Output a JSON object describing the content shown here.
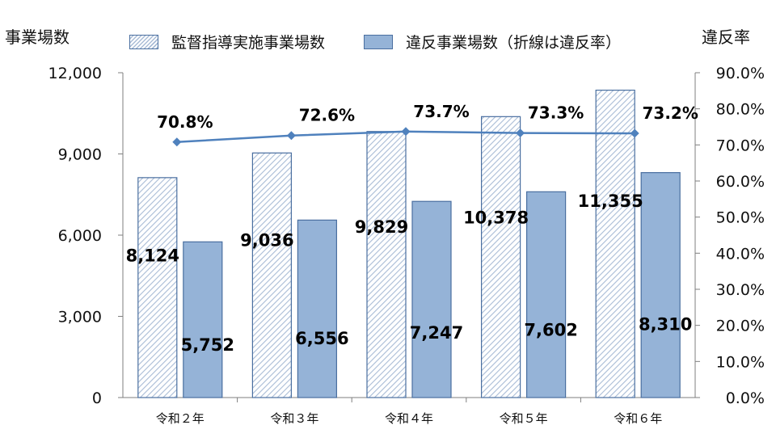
{
  "chart_data": {
    "type": "bar",
    "left_axis_title": "事業場数",
    "right_axis_title": "違反率",
    "categories": [
      "令和２年",
      "令和３年",
      "令和４年",
      "令和５年",
      "令和６年"
    ],
    "series": [
      {
        "name": "監督指導実施事業場数",
        "type": "bar",
        "values": [
          8124,
          9036,
          9829,
          10378,
          11355
        ],
        "labels": [
          "8,124",
          "9,036",
          "9,829",
          "10,378",
          "11,355"
        ]
      },
      {
        "name": "違反事業場数（折線は違反率）",
        "type": "bar",
        "values": [
          5752,
          6556,
          7247,
          7602,
          8310
        ],
        "labels": [
          "5,752",
          "6,556",
          "7,247",
          "7,602",
          "8,310"
        ]
      },
      {
        "name": "違反率",
        "type": "line",
        "axis": "right",
        "values": [
          70.8,
          72.6,
          73.7,
          73.3,
          73.2
        ],
        "labels": [
          "70.8%",
          "72.6%",
          "73.7%",
          "73.3%",
          "73.2%"
        ]
      }
    ],
    "left_axis": {
      "ylim": [
        0,
        12000
      ],
      "ticks": [
        0,
        3000,
        6000,
        9000,
        12000
      ],
      "tick_labels": [
        "0",
        "3,000",
        "6,000",
        "9,000",
        "12,000"
      ]
    },
    "right_axis": {
      "ylim": [
        0,
        90
      ],
      "ticks": [
        0,
        10,
        20,
        30,
        40,
        50,
        60,
        70,
        80,
        90
      ],
      "tick_labels": [
        "0.0%",
        "10.0%",
        "20.0%",
        "30.0%",
        "40.0%",
        "50.0%",
        "60.0%",
        "70.0%",
        "80.0%",
        "90.0%"
      ]
    },
    "grid": false,
    "legend_position": "top",
    "colors": {
      "bar_hatch": "#a9bcd6",
      "bar_solid": "#95b3d7",
      "bar_border": "#4a6fa0",
      "line": "#4f81bd"
    }
  }
}
